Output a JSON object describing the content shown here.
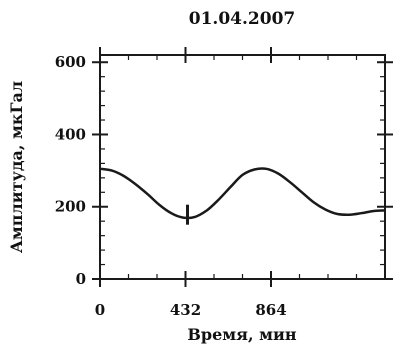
{
  "chart_data": {
    "type": "line",
    "title": "01.04.2007",
    "xlabel": "Время, мин",
    "ylabel": "Амплитуда, мкГал",
    "xlim": [
      0,
      1440
    ],
    "ylim": [
      0,
      620
    ],
    "xticks": [
      0,
      432,
      864
    ],
    "xtick_labels": [
      "0",
      "432",
      "864"
    ],
    "yticks": [
      0,
      200,
      400,
      600
    ],
    "ytick_labels": [
      "0",
      "200",
      "400",
      "600"
    ],
    "grid": false,
    "marker": {
      "x": 432,
      "y": 178
    },
    "series": [
      {
        "x": [
          0,
          60,
          120,
          180,
          240,
          300,
          360,
          420,
          480,
          540,
          600,
          660,
          720,
          780,
          840,
          900,
          960,
          1020,
          1080,
          1140,
          1200,
          1260,
          1320,
          1380,
          1440
        ],
        "y": [
          305,
          300,
          285,
          262,
          235,
          205,
          182,
          170,
          172,
          190,
          220,
          255,
          288,
          303,
          305,
          292,
          268,
          240,
          212,
          192,
          180,
          178,
          182,
          188,
          190
        ]
      }
    ]
  },
  "colors": {
    "line": "#1a1a1a",
    "axis": "#1a1a1a",
    "background": "#ffffff"
  }
}
